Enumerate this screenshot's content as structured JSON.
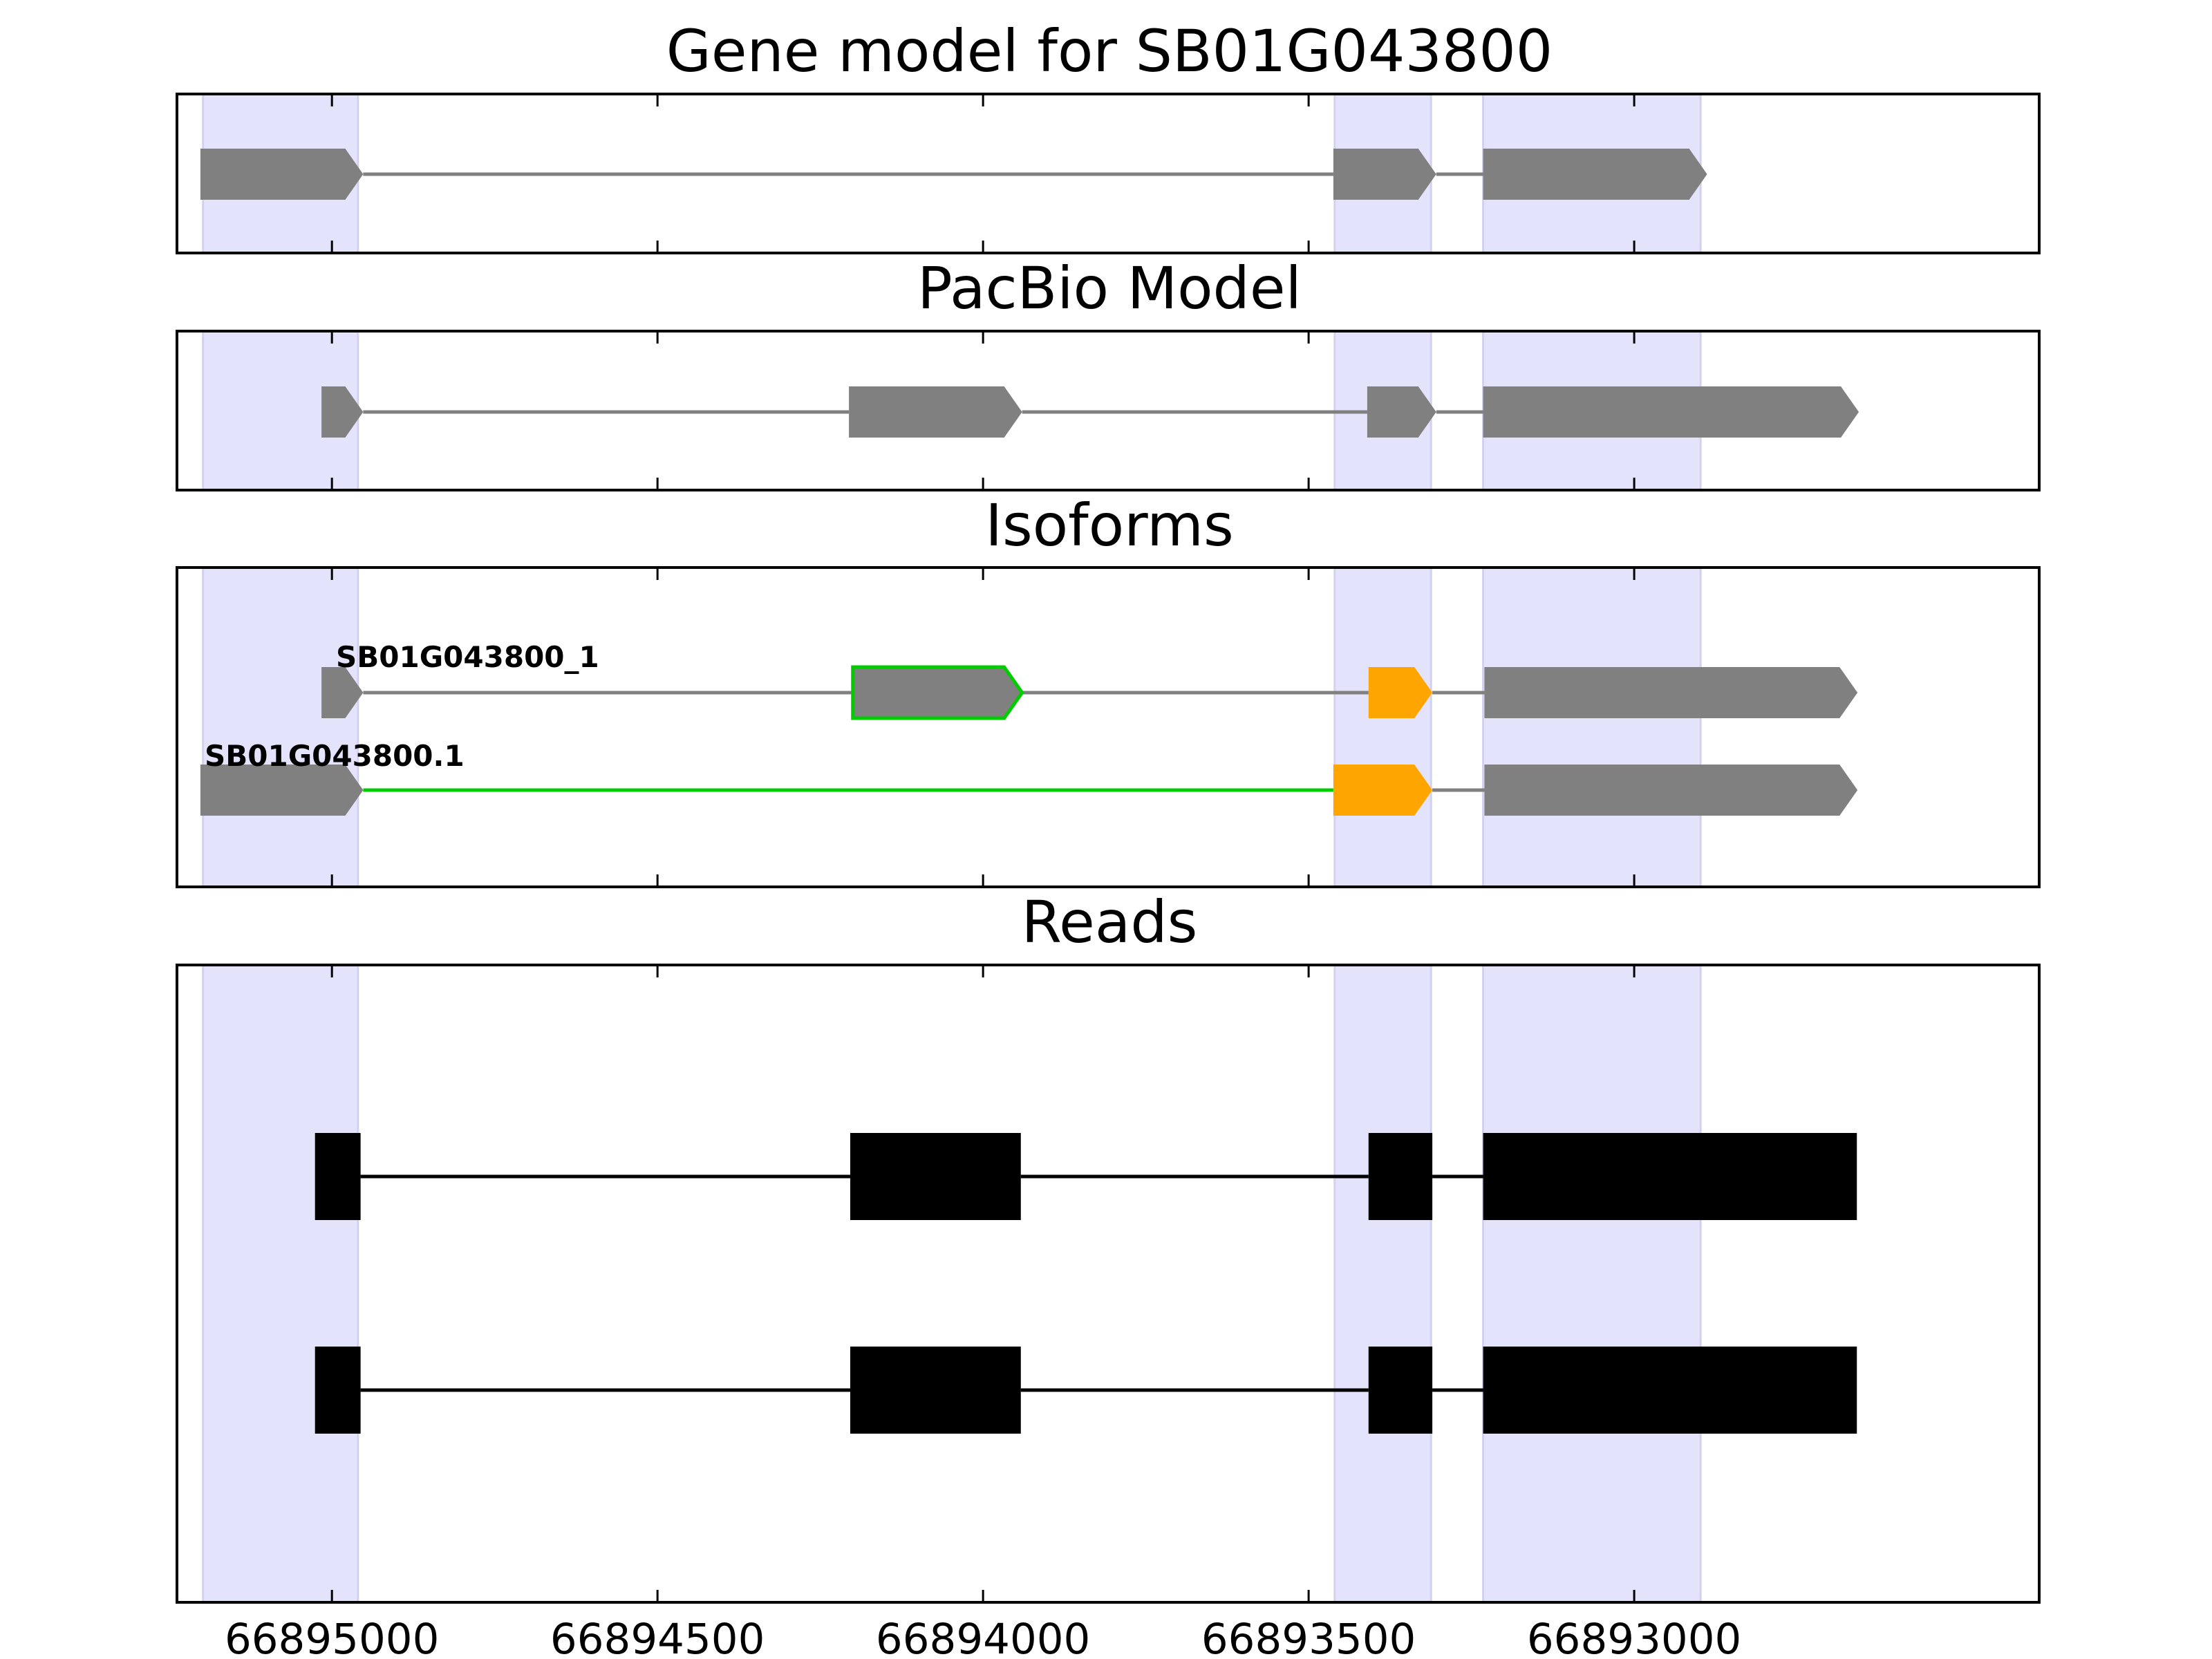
{
  "colors": {
    "highlight": "#e3e3fb",
    "gene_fill": "#808080",
    "intron": "#808080",
    "alt_exon": "#ffa500",
    "novel_outline": "#00cc00",
    "read": "#000000"
  },
  "x_axis": {
    "xlim": [
      66895238,
      66892378
    ],
    "ticks": [
      66895000,
      66894500,
      66894000,
      66893500,
      66893000
    ],
    "tick_labels": [
      "66895000",
      "66894500",
      "66894000",
      "66893500",
      "66893000"
    ]
  },
  "chart_data": {
    "type": "gene_structure",
    "strand": "-",
    "highlight_regions": [
      [
        66895198,
        66894960
      ],
      [
        66893460,
        66893312
      ],
      [
        66893232,
        66892898
      ]
    ],
    "panels": [
      {
        "key": "gene",
        "title": "Gene model for SB01G043800",
        "kind": "arrows",
        "tracks": [
          {
            "label": "",
            "intron_color": "intron",
            "exons": [
              {
                "start": 66895202,
                "end": 66894952,
                "fill": "gene_fill"
              },
              {
                "start": 66893462,
                "end": 66893304,
                "fill": "gene_fill"
              },
              {
                "start": 66893232,
                "end": 66892888,
                "fill": "gene_fill"
              }
            ]
          }
        ]
      },
      {
        "key": "pacbio",
        "title": "PacBio Model",
        "kind": "arrows",
        "tracks": [
          {
            "label": "",
            "intron_color": "intron",
            "exons": [
              {
                "start": 66895016,
                "end": 66894952,
                "fill": "gene_fill"
              },
              {
                "start": 66894206,
                "end": 66893940,
                "fill": "gene_fill"
              },
              {
                "start": 66893410,
                "end": 66893304,
                "fill": "gene_fill"
              },
              {
                "start": 66893232,
                "end": 66892655,
                "fill": "gene_fill"
              }
            ]
          }
        ]
      },
      {
        "key": "isoforms",
        "title": "Isoforms",
        "kind": "arrows",
        "tracks": [
          {
            "label": "SB01G043800_1",
            "intron_color": "intron",
            "exons": [
              {
                "start": 66895016,
                "end": 66894952,
                "fill": "gene_fill"
              },
              {
                "start": 66894200,
                "end": 66893940,
                "fill": "gene_fill",
                "outline": "novel_outline"
              },
              {
                "start": 66893408,
                "end": 66893310,
                "fill": "alt_exon"
              },
              {
                "start": 66893230,
                "end": 66892657,
                "fill": "gene_fill"
              }
            ]
          },
          {
            "label": "SB01G043800.1",
            "intron_color": "intron",
            "exons": [
              {
                "start": 66895202,
                "end": 66894952,
                "fill": "gene_fill"
              },
              {
                "start": 66893462,
                "end": 66893310,
                "fill": "alt_exon"
              },
              {
                "start": 66893230,
                "end": 66892657,
                "fill": "gene_fill"
              }
            ],
            "segment_colors": [
              "novel_outline",
              "intron"
            ]
          }
        ]
      },
      {
        "key": "reads",
        "title": "Reads",
        "kind": "blocks",
        "tracks": [
          {
            "label": "",
            "intron_color": "read",
            "exons": [
              {
                "start": 66895026,
                "end": 66894956,
                "fill": "read"
              },
              {
                "start": 66894204,
                "end": 66893942,
                "fill": "read"
              },
              {
                "start": 66893408,
                "end": 66893310,
                "fill": "read"
              },
              {
                "start": 66893232,
                "end": 66892658,
                "fill": "read"
              }
            ]
          },
          {
            "label": "",
            "intron_color": "read",
            "exons": [
              {
                "start": 66895026,
                "end": 66894956,
                "fill": "read"
              },
              {
                "start": 66894204,
                "end": 66893942,
                "fill": "read"
              },
              {
                "start": 66893408,
                "end": 66893310,
                "fill": "read"
              },
              {
                "start": 66893232,
                "end": 66892658,
                "fill": "read"
              }
            ]
          }
        ]
      }
    ]
  }
}
